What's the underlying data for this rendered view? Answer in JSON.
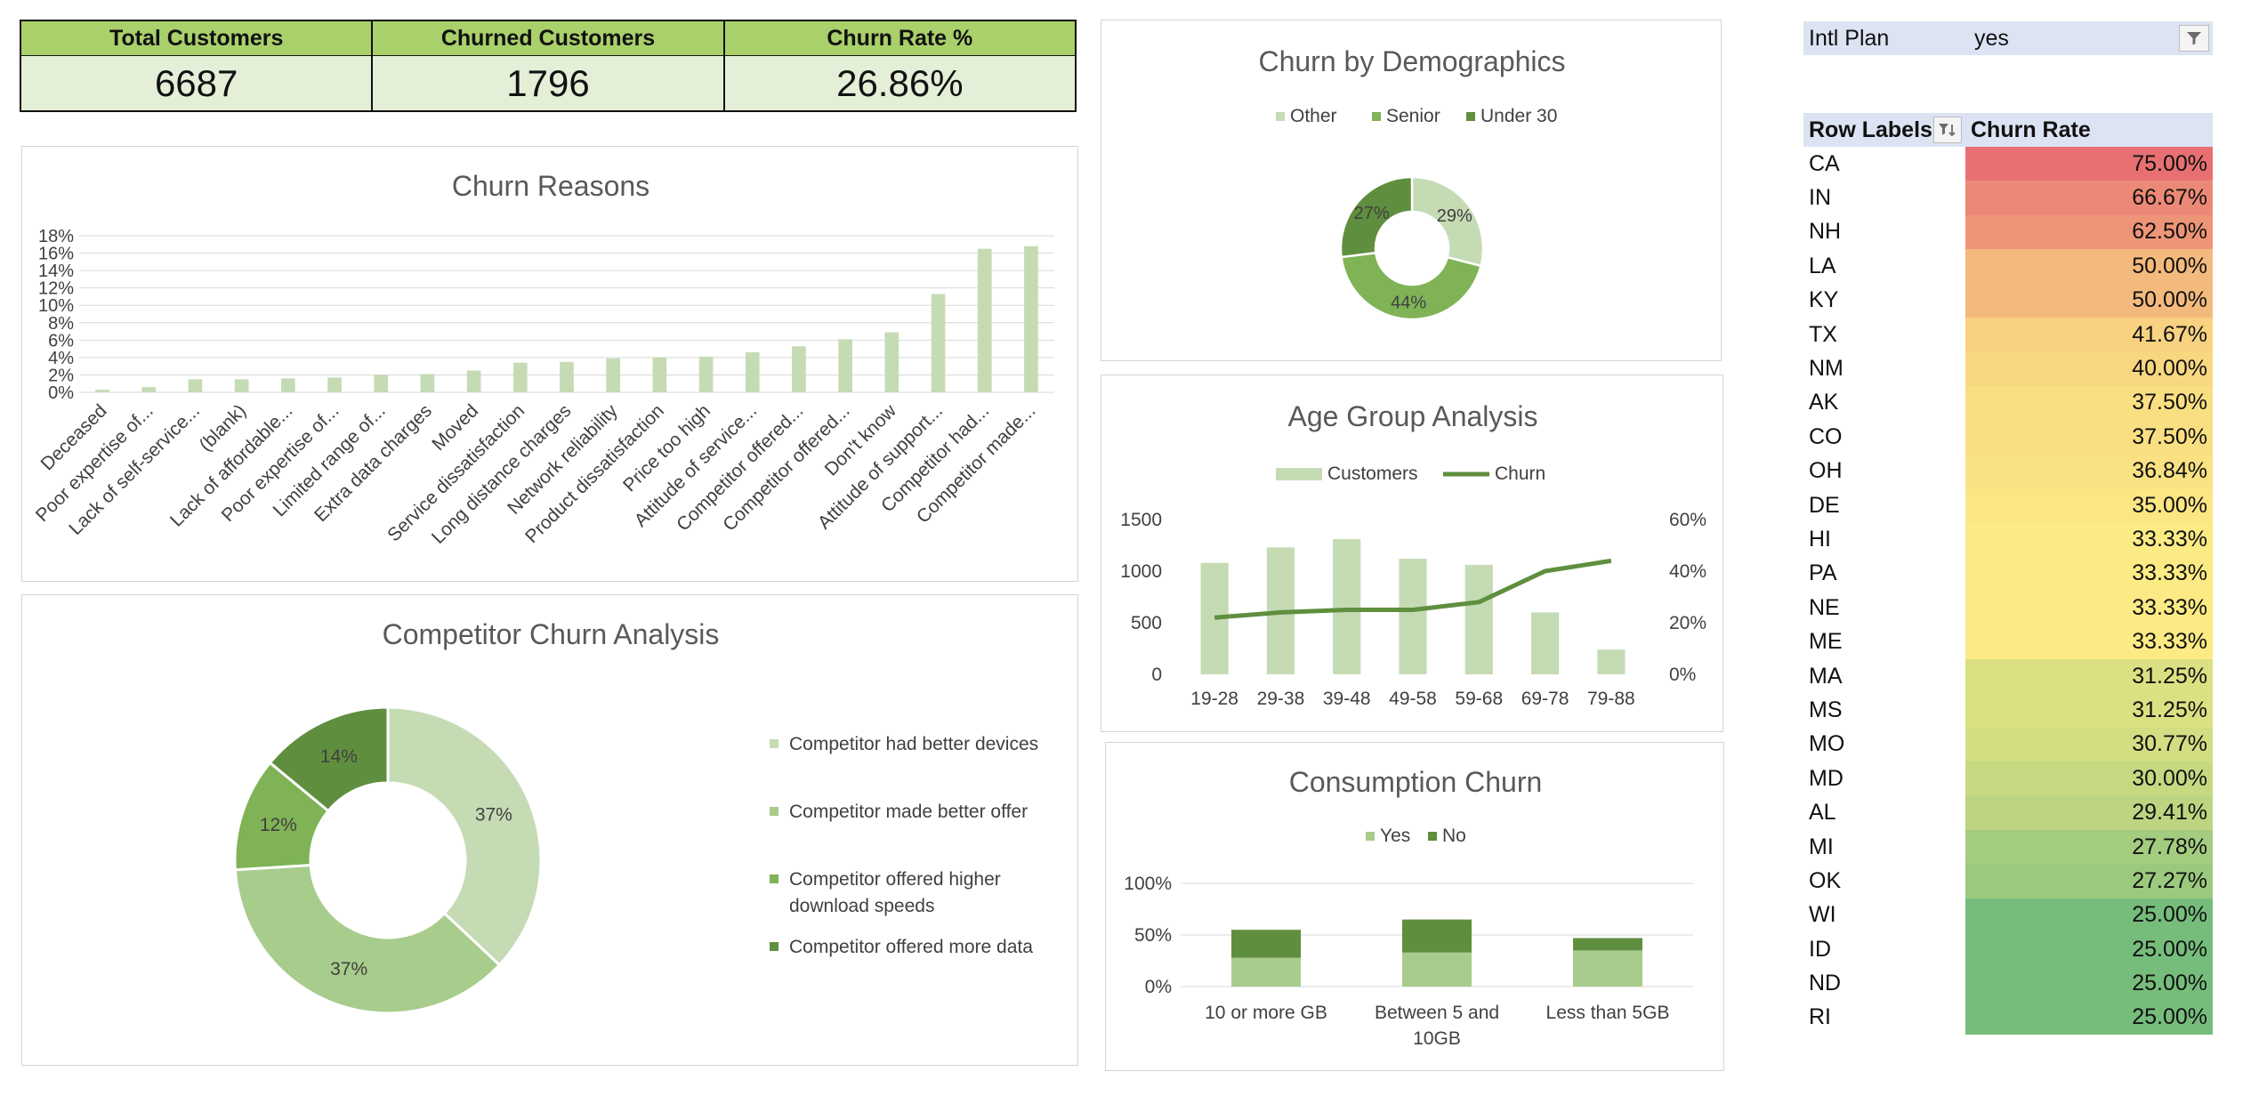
{
  "kpis": [
    {
      "label": "Total Customers",
      "value": "6687"
    },
    {
      "label": "Churned Customers",
      "value": "1796"
    },
    {
      "label": "Churn Rate %",
      "value": "26.86%"
    }
  ],
  "colors": {
    "light": "#c5dbb4",
    "mid": "#a8cc8c",
    "green": "#7fb356",
    "dark": "#5f8f3e",
    "kpi_head": "#a9d06a",
    "kpi_body": "#e4efd7"
  },
  "chart_data": [
    {
      "id": "churn-reasons",
      "type": "bar",
      "title": "Churn Reasons",
      "categories": [
        "Deceased",
        "Poor expertise of...",
        "Lack of self-service...",
        "(blank)",
        "Lack of affordable...",
        "Poor expertise of...",
        "Limited range of...",
        "Extra data charges",
        "Moved",
        "Service dissatisfaction",
        "Long distance charges",
        "Network reliability",
        "Product dissatisfaction",
        "Price too high",
        "Attitude of service...",
        "Competitor offered...",
        "Competitor offered...",
        "Don't know",
        "Attitude of support...",
        "Competitor had...",
        "Competitor made..."
      ],
      "values": [
        0.3,
        0.6,
        1.5,
        1.5,
        1.6,
        1.7,
        2.0,
        2.1,
        2.5,
        3.4,
        3.5,
        3.9,
        4.0,
        4.1,
        4.6,
        5.3,
        6.1,
        6.9,
        11.3,
        16.5,
        16.8
      ],
      "yticks": [
        "0%",
        "2%",
        "4%",
        "6%",
        "8%",
        "10%",
        "12%",
        "14%",
        "16%",
        "18%"
      ],
      "ylim": [
        0,
        18
      ],
      "grid": true
    },
    {
      "id": "churn-demographics",
      "type": "pie",
      "title": "Churn by Demographics",
      "labels": [
        "Other",
        "Senior",
        "Under 30"
      ],
      "values": [
        29,
        44,
        27
      ],
      "data_labels": [
        "29%",
        "44%",
        "27%"
      ],
      "legend": "top"
    },
    {
      "id": "age-group",
      "type": "bar",
      "title": "Age Group Analysis",
      "categories": [
        "19-28",
        "29-38",
        "39-48",
        "49-58",
        "59-68",
        "69-78",
        "79-88"
      ],
      "series": [
        {
          "name": "Customers",
          "type": "bar",
          "axis": "left",
          "values": [
            1080,
            1230,
            1310,
            1120,
            1060,
            600,
            240
          ]
        },
        {
          "name": "Churn",
          "type": "line",
          "axis": "right",
          "values": [
            22,
            24,
            25,
            25,
            28,
            40,
            44
          ]
        }
      ],
      "yticks_left": [
        "0",
        "500",
        "1000",
        "1500"
      ],
      "ylim_left": [
        0,
        1500
      ],
      "yticks_right": [
        "0%",
        "20%",
        "40%",
        "60%"
      ],
      "ylim_right": [
        0,
        60
      ],
      "legend": "top"
    },
    {
      "id": "consumption-churn",
      "type": "bar",
      "title": "Consumption Churn",
      "categories": [
        "10 or more GB",
        "Between 5 and 10GB",
        "Less than 5GB"
      ],
      "series": [
        {
          "name": "Yes",
          "values": [
            28,
            33,
            35
          ]
        },
        {
          "name": "No",
          "values": [
            27,
            32,
            12
          ]
        }
      ],
      "stacked": true,
      "yticks": [
        "0%",
        "50%",
        "100%"
      ],
      "ylim": [
        0,
        100
      ],
      "grid": true,
      "legend": "top"
    },
    {
      "id": "competitor-churn",
      "type": "pie",
      "title": "Competitor Churn Analysis",
      "labels": [
        "Competitor had better devices",
        "Competitor made better offer",
        "Competitor offered higher download speeds",
        "Competitor offered more data"
      ],
      "values": [
        37,
        37,
        12,
        14
      ],
      "data_labels": [
        "37%",
        "37%",
        "12%",
        "14%"
      ],
      "legend": "right"
    }
  ],
  "pivot": {
    "filter_label": "Intl Plan",
    "filter_value": "yes",
    "header_row": "Row Labels",
    "header_value": "Churn Rate",
    "rows": [
      {
        "state": "CA",
        "rate": "75.00%",
        "pct": 75.0
      },
      {
        "state": "IN",
        "rate": "66.67%",
        "pct": 66.67
      },
      {
        "state": "NH",
        "rate": "62.50%",
        "pct": 62.5
      },
      {
        "state": "LA",
        "rate": "50.00%",
        "pct": 50.0
      },
      {
        "state": "KY",
        "rate": "50.00%",
        "pct": 50.0
      },
      {
        "state": "TX",
        "rate": "41.67%",
        "pct": 41.67
      },
      {
        "state": "NM",
        "rate": "40.00%",
        "pct": 40.0
      },
      {
        "state": "AK",
        "rate": "37.50%",
        "pct": 37.5
      },
      {
        "state": "CO",
        "rate": "37.50%",
        "pct": 37.5
      },
      {
        "state": "OH",
        "rate": "36.84%",
        "pct": 36.84
      },
      {
        "state": "DE",
        "rate": "35.00%",
        "pct": 35.0
      },
      {
        "state": "HI",
        "rate": "33.33%",
        "pct": 33.33
      },
      {
        "state": "PA",
        "rate": "33.33%",
        "pct": 33.33
      },
      {
        "state": "NE",
        "rate": "33.33%",
        "pct": 33.33
      },
      {
        "state": "ME",
        "rate": "33.33%",
        "pct": 33.33
      },
      {
        "state": "MA",
        "rate": "31.25%",
        "pct": 31.25
      },
      {
        "state": "MS",
        "rate": "31.25%",
        "pct": 31.25
      },
      {
        "state": "MO",
        "rate": "30.77%",
        "pct": 30.77
      },
      {
        "state": "MD",
        "rate": "30.00%",
        "pct": 30.0
      },
      {
        "state": "AL",
        "rate": "29.41%",
        "pct": 29.41
      },
      {
        "state": "MI",
        "rate": "27.78%",
        "pct": 27.78
      },
      {
        "state": "OK",
        "rate": "27.27%",
        "pct": 27.27
      },
      {
        "state": "WI",
        "rate": "25.00%",
        "pct": 25.0
      },
      {
        "state": "ID",
        "rate": "25.00%",
        "pct": 25.0
      },
      {
        "state": "ND",
        "rate": "25.00%",
        "pct": 25.0
      },
      {
        "state": "RI",
        "rate": "25.00%",
        "pct": 25.0
      }
    ],
    "icons": {
      "filter": "filter-icon",
      "sort_filter": "sort-filter-icon"
    }
  }
}
